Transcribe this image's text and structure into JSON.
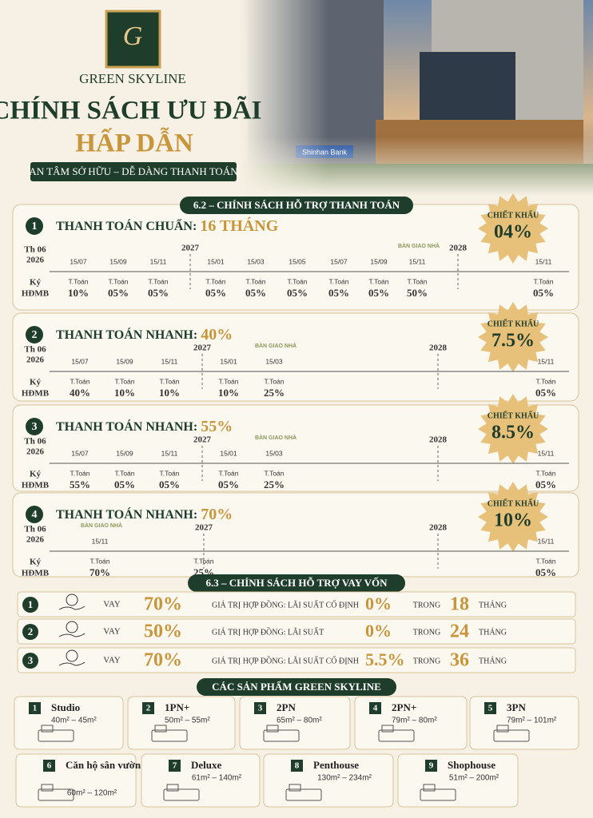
{
  "header": {
    "logo_letter": "G",
    "brand": "GREEN SKYLINE",
    "title_line1": "CHÍNH SÁCH ƯU ĐÃI",
    "title_line2": "HẤP DẪN",
    "tagline": "AN TÂM SỞ HỮU – DỄ DÀNG THANH TOÁN",
    "bank_sign": "Shinhan Bank"
  },
  "payment_section": {
    "title": "6.2 – CHÍNH SÁCH HỖ TRỢ THANH TOÁN",
    "plans": [
      {
        "number": "1",
        "name": "THANH TOÁN CHUẨN:",
        "highlight": "16 THÁNG",
        "discount_label": "CHIẾT KHẤU",
        "discount": "04%",
        "start_month": "Th 06",
        "start_year": "2026",
        "sign_line1": "Ký",
        "sign_line2": "HĐMB",
        "years": [
          "2027",
          "2028"
        ],
        "handover": "BÀN GIAO NHÀ",
        "payments": [
          {
            "date": "15/07",
            "label": "T.Toán",
            "percent": "10%"
          },
          {
            "date": "15/09",
            "label": "T.Toán",
            "percent": "05%"
          },
          {
            "date": "15/11",
            "label": "T.Toán",
            "percent": "05%"
          },
          {
            "date": "15/01",
            "label": "T.Toán",
            "percent": "05%"
          },
          {
            "date": "15/03",
            "label": "T.Toán",
            "percent": "05%"
          },
          {
            "date": "15/05",
            "label": "T.Toán",
            "percent": "05%"
          },
          {
            "date": "15/07",
            "label": "T.Toán",
            "percent": "05%"
          },
          {
            "date": "15/09",
            "label": "T.Toán",
            "percent": "05%"
          },
          {
            "date": "15/11",
            "label": "T.Toán",
            "percent": "50%"
          },
          {
            "date": "15/11",
            "label": "T.Toán",
            "percent": "05%"
          }
        ]
      },
      {
        "number": "2",
        "name": "THANH TOÁN NHANH:",
        "highlight": "40%",
        "discount_label": "CHIẾT KHẤU",
        "discount": "7.5%",
        "start_month": "Th 06",
        "start_year": "2026",
        "sign_line1": "Ký",
        "sign_line2": "HĐMB",
        "years": [
          "2027",
          "2028"
        ],
        "handover": "BÀN GIAO NHÀ",
        "payments": [
          {
            "date": "15/07",
            "label": "T.Toán",
            "percent": "40%"
          },
          {
            "date": "15/09",
            "label": "T.Toán",
            "percent": "10%"
          },
          {
            "date": "15/11",
            "label": "T.Toán",
            "percent": "10%"
          },
          {
            "date": "15/01",
            "label": "T.Toán",
            "percent": "10%"
          },
          {
            "date": "15/03",
            "label": "T.Toán",
            "percent": "25%"
          },
          {
            "date": "15/11",
            "label": "T.Toán",
            "percent": "05%"
          }
        ]
      },
      {
        "number": "3",
        "name": "THANH TOÁN NHANH:",
        "highlight": "55%",
        "discount_label": "CHIẾT KHẤU",
        "discount": "8.5%",
        "start_month": "Th 06",
        "start_year": "2026",
        "sign_line1": "Ký",
        "sign_line2": "HĐMB",
        "years": [
          "2027",
          "2028"
        ],
        "handover": "BÀN GIAO NHÀ",
        "payments": [
          {
            "date": "15/07",
            "label": "T.Toán",
            "percent": "55%"
          },
          {
            "date": "15/09",
            "label": "T.Toán",
            "percent": "05%"
          },
          {
            "date": "15/11",
            "label": "T.Toán",
            "percent": "05%"
          },
          {
            "date": "15/01",
            "label": "T.Toán",
            "percent": "05%"
          },
          {
            "date": "15/03",
            "label": "T.Toán",
            "percent": "25%"
          },
          {
            "date": "15/11",
            "label": "T.Toán",
            "percent": "05%"
          }
        ]
      },
      {
        "number": "4",
        "name": "THANH TOÁN NHANH:",
        "highlight": "70%",
        "discount_label": "CHIẾT KHẤU",
        "discount": "10%",
        "start_month": "Th 06",
        "start_year": "2026",
        "sign_line1": "Ký",
        "sign_line2": "HĐMB",
        "years": [
          "2027",
          "2028"
        ],
        "handover": "BÀN GIAO NHÀ",
        "payments": [
          {
            "date": "15/11",
            "label": "T.Toán",
            "percent": "70%"
          },
          {
            "date": null,
            "label": "T.Toán",
            "percent": "25%"
          },
          {
            "date": "15/11",
            "label": "T.Toán",
            "percent": "05%"
          }
        ]
      }
    ]
  },
  "loan_section": {
    "title": "6.3 – CHÍNH SÁCH HỖ TRỢ VAY VỐN",
    "rows": [
      {
        "number": "1",
        "loan": "VAY",
        "percent": "70%",
        "description": "GIÁ TRỊ HỢP ĐỒNG: LÃI SUẤT CỐ ĐỊNH",
        "rate": "0%",
        "within": "TRONG",
        "months": "18",
        "unit": "THÁNG"
      },
      {
        "number": "2",
        "loan": "VAY",
        "percent": "50%",
        "description": "GIÁ TRỊ HỢP ĐỒNG: LÃI SUẤT",
        "rate": "0%",
        "within": "TRONG",
        "months": "24",
        "unit": "THÁNG"
      },
      {
        "number": "3",
        "loan": "VAY",
        "percent": "70%",
        "description": "GIÁ TRỊ HỢP ĐỒNG: LÃI SUẤT CỐ ĐỊNH",
        "rate": "5.5%",
        "within": "TRONG",
        "months": "36",
        "unit": "THÁNG"
      }
    ]
  },
  "products_section": {
    "title": "CÁC SẢN PHẨM GREEN SKYLINE",
    "products": [
      {
        "number": "1",
        "name": "Studio",
        "area": "40m² – 45m²"
      },
      {
        "number": "2",
        "name": "1PN+",
        "area": "50m² – 55m²"
      },
      {
        "number": "3",
        "name": "2PN",
        "area": "65m² – 80m²"
      },
      {
        "number": "4",
        "name": "2PN+",
        "area": "79m² – 80m²"
      },
      {
        "number": "5",
        "name": "3PN",
        "area": "79m² – 101m²"
      },
      {
        "number": "6",
        "name": "Căn hộ sân vườn",
        "area": "60m² – 120m²"
      },
      {
        "number": "7",
        "name": "Deluxe",
        "area": "61m² – 140m²"
      },
      {
        "number": "8",
        "name": "Penthouse",
        "area": "130m² – 234m²"
      },
      {
        "number": "9",
        "name": "Shophouse",
        "area": "51m² – 200m²"
      }
    ]
  }
}
